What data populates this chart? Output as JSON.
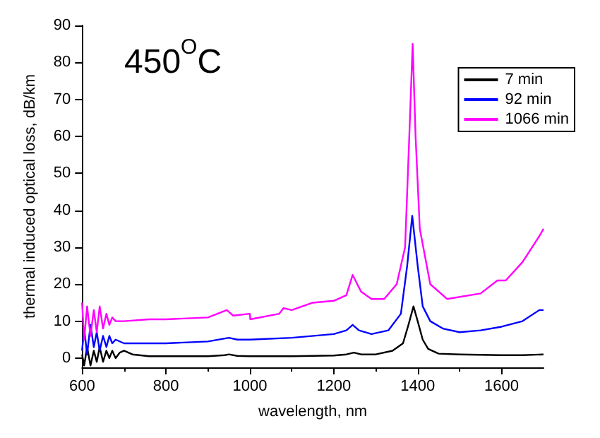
{
  "chart_data": {
    "type": "line",
    "xlabel": "wavelength, nm",
    "ylabel": "thermal induced optical loss, dB/km",
    "annotations": [
      "450$^{O}$C"
    ],
    "xlim": [
      600,
      1700
    ],
    "xticks": [
      600,
      800,
      1000,
      1200,
      1400,
      1600
    ],
    "ylim": [
      -2.5,
      90
    ],
    "yticks": [
      0,
      10,
      20,
      30,
      40,
      50,
      60,
      70,
      80,
      90
    ],
    "grid": false,
    "legend": "top right",
    "marker": "none",
    "line_style": "solid",
    "series": [
      {
        "name": "7 min",
        "color": "#000000",
        "x": [
          600,
          605,
          612,
          620,
          628,
          635,
          642,
          650,
          658,
          665,
          672,
          680,
          690,
          700,
          720,
          760,
          800,
          900,
          940,
          950,
          970,
          1000,
          1100,
          1200,
          1230,
          1248,
          1265,
          1300,
          1340,
          1365,
          1378,
          1390,
          1400,
          1412,
          1425,
          1450,
          1500,
          1600,
          1650,
          1700
        ],
        "values": [
          1,
          -2,
          3,
          -2,
          2,
          -1,
          3,
          -1,
          2,
          0,
          2,
          0,
          1.5,
          2,
          1,
          0.5,
          0.5,
          0.5,
          0.8,
          1,
          0.6,
          0.5,
          0.5,
          0.7,
          1,
          1.5,
          1,
          1,
          2,
          4,
          9,
          14,
          10,
          5,
          2.5,
          1.2,
          1,
          0.8,
          0.8,
          1
        ]
      },
      {
        "name": "92 min",
        "color": "#0000ff",
        "x": [
          600,
          605,
          612,
          620,
          628,
          635,
          642,
          650,
          658,
          665,
          672,
          680,
          700,
          760,
          800,
          900,
          950,
          970,
          1000,
          1100,
          1200,
          1230,
          1245,
          1260,
          1290,
          1330,
          1360,
          1375,
          1387,
          1400,
          1412,
          1430,
          1460,
          1500,
          1550,
          1600,
          1650,
          1690,
          1700
        ],
        "values": [
          2,
          8,
          1,
          9,
          3,
          7,
          2,
          6,
          3,
          6,
          4,
          5,
          4,
          4,
          4,
          4.5,
          5.5,
          5,
          5,
          5.5,
          6.5,
          7.5,
          9,
          7.5,
          6.5,
          7.5,
          12,
          25,
          38.5,
          25,
          14,
          10,
          8,
          7,
          7.5,
          8.5,
          10,
          13,
          13
        ]
      },
      {
        "name": "1066 min",
        "color": "#ff00ff",
        "x": [
          600,
          605,
          612,
          620,
          628,
          635,
          642,
          650,
          658,
          665,
          672,
          680,
          700,
          760,
          800,
          900,
          945,
          960,
          1000,
          1001,
          1070,
          1080,
          1100,
          1150,
          1200,
          1230,
          1245,
          1265,
          1290,
          1320,
          1350,
          1370,
          1380,
          1388,
          1395,
          1405,
          1430,
          1470,
          1550,
          1590,
          1610,
          1650,
          1690,
          1700
        ],
        "values": [
          15,
          5,
          14,
          6,
          13,
          7,
          14,
          8,
          12,
          9,
          11,
          10,
          10,
          10.5,
          10.5,
          11,
          13,
          11.5,
          12,
          10.5,
          12,
          13.5,
          13,
          15,
          15.5,
          17,
          22.5,
          18,
          16,
          16,
          20,
          30,
          60,
          85,
          60,
          35,
          20,
          16,
          17.5,
          21,
          21,
          26,
          33,
          35
        ]
      }
    ]
  }
}
